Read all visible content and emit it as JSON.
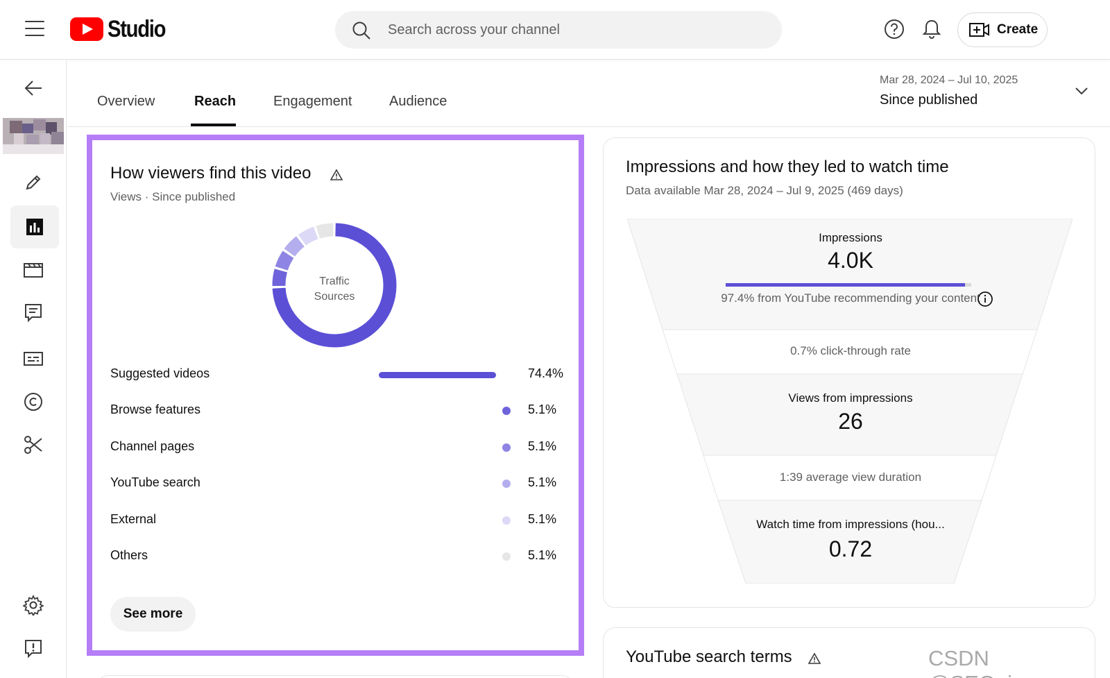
{
  "app": {
    "logo_text": "Studio",
    "brand_color": "#ff0000"
  },
  "search": {
    "placeholder": "Search across your channel"
  },
  "header": {
    "create_label": "Create"
  },
  "tabs": [
    {
      "label": "Overview"
    },
    {
      "label": "Reach"
    },
    {
      "label": "Engagement"
    },
    {
      "label": "Audience"
    }
  ],
  "active_tab": "Reach",
  "date_range": {
    "dates": "Mar 28, 2024 – Jul 10, 2025",
    "label": "Since published"
  },
  "traffic_card": {
    "title": "How viewers find this video",
    "subtitle": "Views · Since published",
    "donut_center": [
      "Traffic",
      "Sources"
    ],
    "sources": [
      {
        "label": "Suggested videos",
        "value": "74.4%",
        "fraction": 0.744,
        "color": "#5b4fd6"
      },
      {
        "label": "Browse features",
        "value": "5.1%",
        "fraction": 0.051,
        "color": "#6e63db"
      },
      {
        "label": "Channel pages",
        "value": "5.1%",
        "fraction": 0.051,
        "color": "#8e84e4"
      },
      {
        "label": "YouTube search",
        "value": "5.1%",
        "fraction": 0.051,
        "color": "#b4aeee"
      },
      {
        "label": "External",
        "value": "5.1%",
        "fraction": 0.051,
        "color": "#dcd9f7"
      },
      {
        "label": "Others",
        "value": "5.1%",
        "fraction": 0.051,
        "color": "#e6e6e6"
      }
    ],
    "see_more_label": "See more",
    "highlight_color": "#b57ef7"
  },
  "funnel_card": {
    "title": "Impressions and how they led to watch time",
    "subtitle": "Data available Mar 28, 2024 – Jul 9, 2025 (469 days)",
    "impressions_label": "Impressions",
    "impressions_value": "4.0K",
    "impressions_fraction": 0.974,
    "recommend_text": "97.4% from YouTube recommending your content",
    "ctr_text": "0.7% click-through rate",
    "views_label": "Views from impressions",
    "views_value": "26",
    "avd_text": "1:39 average view duration",
    "watch_label": "Watch time from impressions (hou...",
    "watch_value": "0.72"
  },
  "terms_card": {
    "title": "YouTube search terms"
  },
  "watermark": "CSDN @SEO_juper"
}
